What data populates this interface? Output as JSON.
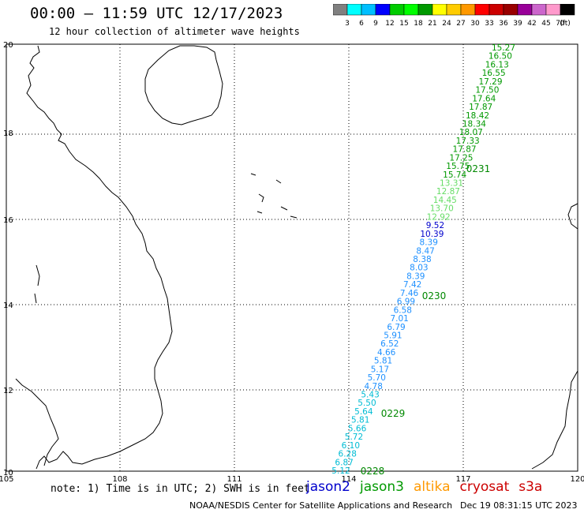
{
  "header": {
    "title": "00:00 – 11:59 UTC 12/17/2023",
    "subtitle": "12 hour collection of altimeter wave heights"
  },
  "colorbar": {
    "colors": [
      "#808080",
      "#00ffff",
      "#00bfff",
      "#0000ff",
      "#00cc00",
      "#00ff00",
      "#009900",
      "#ffff00",
      "#ffcc00",
      "#ff9900",
      "#ff0000",
      "#cc0000",
      "#990000",
      "#990099",
      "#cc66cc",
      "#ff99cc",
      "#000000"
    ],
    "labels": [
      "3",
      "6",
      "9",
      "12",
      "15",
      "18",
      "21",
      "24",
      "27",
      "30",
      "33",
      "36",
      "39",
      "42",
      "45",
      "70"
    ],
    "unit": "(ft)"
  },
  "axes": {
    "lon_labels": [
      "105",
      "108",
      "111",
      "114",
      "117",
      "120"
    ],
    "lat_labels": [
      "20",
      "18",
      "16",
      "14",
      "12",
      "10"
    ]
  },
  "track": {
    "points": [
      {
        "v": "15.27",
        "c": "#009900"
      },
      {
        "v": "16.50",
        "c": "#009900"
      },
      {
        "v": "16.13",
        "c": "#009900"
      },
      {
        "v": "16.55",
        "c": "#009900"
      },
      {
        "v": "17.29",
        "c": "#009900"
      },
      {
        "v": "17.50",
        "c": "#009900"
      },
      {
        "v": "17.64",
        "c": "#009900"
      },
      {
        "v": "17.87",
        "c": "#009900"
      },
      {
        "v": "18.42",
        "c": "#009900"
      },
      {
        "v": "18.34",
        "c": "#009900"
      },
      {
        "v": "18.07",
        "c": "#009900"
      },
      {
        "v": "17.33",
        "c": "#009900"
      },
      {
        "v": "17.87",
        "c": "#009900"
      },
      {
        "v": "17.25",
        "c": "#009900"
      },
      {
        "v": "15.75",
        "c": "#009900"
      },
      {
        "v": "15.74",
        "c": "#009900"
      },
      {
        "v": "13.31",
        "c": "#66dd66"
      },
      {
        "v": "12.87",
        "c": "#66dd66"
      },
      {
        "v": "14.45",
        "c": "#66dd66"
      },
      {
        "v": "13.70",
        "c": "#66dd66"
      },
      {
        "v": "12.92",
        "c": "#66dd66"
      },
      {
        "v": "9.52",
        "c": "#0000cc"
      },
      {
        "v": "10.39",
        "c": "#0000cc"
      },
      {
        "v": "8.39",
        "c": "#1e90ff"
      },
      {
        "v": "8.47",
        "c": "#1e90ff"
      },
      {
        "v": "8.38",
        "c": "#1e90ff"
      },
      {
        "v": "8.03",
        "c": "#1e90ff"
      },
      {
        "v": "8.39",
        "c": "#1e90ff"
      },
      {
        "v": "7.42",
        "c": "#1e90ff"
      },
      {
        "v": "7.46",
        "c": "#1e90ff"
      },
      {
        "v": "6.99",
        "c": "#1e90ff"
      },
      {
        "v": "6.58",
        "c": "#1e90ff"
      },
      {
        "v": "7.01",
        "c": "#1e90ff"
      },
      {
        "v": "6.79",
        "c": "#1e90ff"
      },
      {
        "v": "5.91",
        "c": "#1e90ff"
      },
      {
        "v": "6.52",
        "c": "#1e90ff"
      },
      {
        "v": "4.66",
        "c": "#1e90ff"
      },
      {
        "v": "5.81",
        "c": "#1e90ff"
      },
      {
        "v": "5.17",
        "c": "#1e90ff"
      },
      {
        "v": "5.70",
        "c": "#1e90ff"
      },
      {
        "v": "4.78",
        "c": "#1e90ff"
      },
      {
        "v": "5.43",
        "c": "#00bcd4"
      },
      {
        "v": "5.50",
        "c": "#00bcd4"
      },
      {
        "v": "5.64",
        "c": "#00bcd4"
      },
      {
        "v": "5.81",
        "c": "#00bcd4"
      },
      {
        "v": "5.66",
        "c": "#00bcd4"
      },
      {
        "v": "5.72",
        "c": "#00bcd4"
      },
      {
        "v": "6.10",
        "c": "#00bcd4"
      },
      {
        "v": "6.28",
        "c": "#00bcd4"
      },
      {
        "v": "6.87",
        "c": "#00bcd4"
      },
      {
        "v": "5.12",
        "c": "#00bcd4"
      }
    ],
    "time_labels": [
      "0231",
      "0230",
      "0229",
      "0228"
    ],
    "time_color": "#008800"
  },
  "footer": {
    "note": "note: 1) Time is in UTC; 2) SWH is in feet",
    "satellites": [
      {
        "name": "jason2",
        "color": "#0000cc"
      },
      {
        "name": "jason3",
        "color": "#009900"
      },
      {
        "name": "altika",
        "color": "#ff9900"
      },
      {
        "name": "cryosat",
        "color": "#cc0000"
      },
      {
        "name": "s3a",
        "color": "#cc0000"
      }
    ],
    "credit": "NOAA/NESDIS Center for Satellite Applications and Research",
    "timestamp": "Dec 19 08:31:15 UTC 2023"
  }
}
